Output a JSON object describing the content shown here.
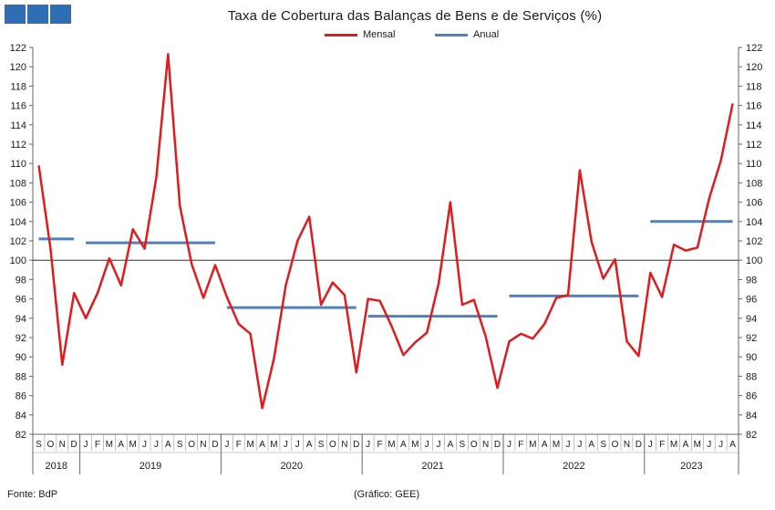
{
  "title": "Taxa de Cobertura das Balanças de Bens e de Serviços (%)",
  "footer": {
    "source": "Fonte: BdP",
    "credit": "(Gráfico: GEE)"
  },
  "colors": {
    "logo": "#2f6eb5",
    "monthly": "#e31a1c",
    "annual": "#4f81bd",
    "reference_line": "#333333"
  },
  "chart_data": {
    "type": "line",
    "title": "Taxa de Cobertura das Balanças de Bens e de Serviços (%)",
    "ylim": [
      82,
      122
    ],
    "y_ticks": [
      82,
      84,
      86,
      88,
      90,
      92,
      94,
      96,
      98,
      100,
      102,
      104,
      106,
      108,
      110,
      112,
      114,
      116,
      118,
      120,
      122
    ],
    "reference_line": 100,
    "grid": false,
    "legend_position": "top-center",
    "months": [
      "S",
      "O",
      "N",
      "D",
      "J",
      "F",
      "M",
      "A",
      "M",
      "J",
      "J",
      "A",
      "S",
      "O",
      "N",
      "D",
      "J",
      "F",
      "M",
      "A",
      "M",
      "J",
      "J",
      "A",
      "S",
      "O",
      "N",
      "D",
      "J",
      "F",
      "M",
      "A",
      "M",
      "J",
      "J",
      "A",
      "S",
      "O",
      "N",
      "D",
      "J",
      "F",
      "M",
      "A",
      "M",
      "J",
      "J",
      "A",
      "S",
      "O",
      "N",
      "D",
      "J",
      "F",
      "M",
      "A",
      "M",
      "J",
      "J",
      "A"
    ],
    "years": [
      {
        "label": "2018",
        "months": 4
      },
      {
        "label": "2019",
        "months": 12
      },
      {
        "label": "2020",
        "months": 12
      },
      {
        "label": "2021",
        "months": 12
      },
      {
        "label": "2022",
        "months": 12
      },
      {
        "label": "2023",
        "months": 8
      }
    ],
    "series": [
      {
        "name": "Mensal",
        "color": "#e31a1c",
        "values": [
          109.8,
          101.2,
          89.2,
          96.6,
          94.0,
          96.6,
          100.2,
          97.4,
          103.2,
          101.2,
          108.6,
          121.3,
          105.6,
          99.6,
          96.1,
          99.5,
          96.2,
          93.4,
          92.4,
          84.7,
          89.8,
          97.4,
          102.0,
          104.5,
          95.4,
          97.7,
          96.4,
          88.4,
          96.0,
          95.8,
          93.2,
          90.2,
          91.5,
          92.5,
          97.6,
          106.0,
          95.4,
          95.9,
          92.1,
          86.8,
          91.6,
          92.4,
          91.9,
          93.4,
          96.1,
          96.4,
          109.3,
          101.9,
          98.1,
          100.1,
          91.6,
          90.1,
          98.7,
          96.2,
          101.6,
          101.0,
          101.3,
          106.4,
          110.3,
          116.2
        ]
      },
      {
        "name": "Anual",
        "color": "#4f81bd",
        "segments": [
          {
            "year": "2018",
            "value": 102.2
          },
          {
            "year": "2019",
            "value": 101.8
          },
          {
            "year": "2020",
            "value": 95.1
          },
          {
            "year": "2021",
            "value": 94.2
          },
          {
            "year": "2022",
            "value": 96.3
          },
          {
            "year": "2023",
            "value": 104.0
          }
        ]
      }
    ]
  }
}
